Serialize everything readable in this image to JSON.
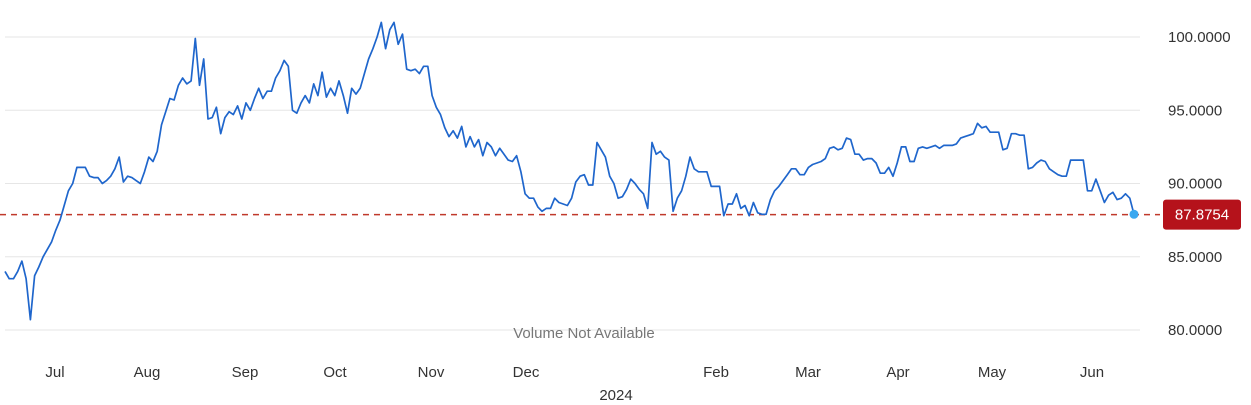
{
  "chart_data": {
    "type": "line",
    "title": "",
    "xlabel": "",
    "ylabel": "",
    "year_label": "2024",
    "x_tick_labels": [
      "Jul",
      "Aug",
      "Sep",
      "Oct",
      "Nov",
      "Dec",
      "Feb",
      "Mar",
      "Apr",
      "May",
      "Jun"
    ],
    "y_tick_labels": [
      "100.0000",
      "95.0000",
      "90.0000",
      "85.0000",
      "80.0000"
    ],
    "y_ticks": [
      100,
      95,
      90,
      85,
      80
    ],
    "ylim": [
      78.6,
      101.6
    ],
    "grid": true,
    "volume_note": "Volume Not Available",
    "current": {
      "value": 87.8754,
      "label": "87.8754"
    },
    "colors": {
      "line": "#1f66cc",
      "grid": "#e6e6e6",
      "reference": "#c0392b",
      "badge": "#b5121b",
      "last_point": "#3aa8f0"
    },
    "series": [
      {
        "values": [
          84.0,
          83.5,
          83.5,
          84.0,
          84.7,
          83.5,
          80.7,
          83.7,
          84.3,
          85.0,
          85.5,
          86.0,
          86.8,
          87.5,
          88.5,
          89.5,
          90.0,
          91.1,
          91.1,
          91.1,
          90.5,
          90.4,
          90.4,
          90.0,
          90.2,
          90.5,
          91.0,
          91.8,
          90.1,
          90.5,
          90.4,
          90.2,
          90.0,
          90.8,
          91.8,
          91.5,
          92.2,
          94.0,
          94.9,
          95.8,
          95.7,
          96.7,
          97.2,
          96.8,
          97.0,
          99.9,
          96.7,
          98.5,
          94.4,
          94.5,
          95.2,
          93.4,
          94.5,
          94.9,
          94.7,
          95.3,
          94.4,
          95.5,
          95.0,
          95.8,
          96.5,
          95.8,
          96.3,
          96.3,
          97.2,
          97.7,
          98.4,
          98.0,
          95.0,
          94.8,
          95.5,
          96.0,
          95.5,
          96.8,
          96.0,
          97.6,
          95.9,
          96.5,
          96.0,
          97.0,
          96.0,
          94.8,
          96.5,
          96.1,
          96.5,
          97.5,
          98.5,
          99.2,
          100.0,
          101.0,
          99.2,
          100.5,
          101.0,
          99.5,
          100.2,
          97.8,
          97.7,
          97.8,
          97.5,
          98.0,
          98.0,
          96.0,
          95.2,
          94.7,
          93.8,
          93.2,
          93.6,
          93.1,
          93.9,
          92.5,
          93.2,
          92.5,
          93.0,
          91.9,
          92.8,
          92.5,
          91.9,
          92.4,
          92.0,
          91.6,
          91.5,
          91.9,
          90.8,
          89.3,
          89.0,
          89.0,
          88.4,
          88.1,
          88.3,
          88.3,
          89.0,
          88.7,
          88.6,
          88.5,
          89.0,
          90.1,
          90.5,
          90.6,
          89.9,
          89.9,
          92.8,
          92.3,
          91.8,
          90.5,
          90.0,
          89.0,
          89.1,
          89.6,
          90.3,
          90.0,
          89.6,
          89.3,
          88.3,
          92.8,
          92.0,
          92.2,
          91.8,
          91.6,
          88.1,
          89.0,
          89.5,
          90.5,
          91.8,
          91.0,
          90.8,
          90.8,
          90.8,
          89.8,
          89.8,
          89.8,
          87.8,
          88.6,
          88.6,
          89.3,
          88.3,
          88.5,
          87.8,
          88.7,
          88.0,
          87.9,
          87.9,
          88.9,
          89.5,
          89.8,
          90.2,
          90.6,
          91.0,
          91.0,
          90.6,
          90.6,
          91.1,
          91.3,
          91.4,
          91.5,
          91.7,
          92.4,
          92.5,
          92.3,
          92.4,
          93.1,
          93.0,
          92.0,
          92.0,
          91.6,
          91.7,
          91.7,
          91.4,
          90.7,
          90.7,
          91.1,
          90.5,
          91.4,
          92.5,
          92.5,
          91.5,
          91.5,
          92.4,
          92.5,
          92.4,
          92.5,
          92.6,
          92.4,
          92.6,
          92.6,
          92.6,
          92.7,
          93.1,
          93.2,
          93.3,
          93.4,
          94.1,
          93.8,
          93.9,
          93.5,
          93.5,
          93.5,
          92.3,
          92.4,
          93.4,
          93.4,
          93.3,
          93.3,
          91.0,
          91.1,
          91.4,
          91.6,
          91.5,
          91.0,
          90.8,
          90.6,
          90.5,
          90.5,
          91.6,
          91.6,
          91.6,
          91.6,
          89.5,
          89.5,
          90.3,
          89.5,
          88.7,
          89.2,
          89.4,
          88.9,
          89.0,
          89.3,
          89.0,
          87.9
        ]
      }
    ]
  }
}
